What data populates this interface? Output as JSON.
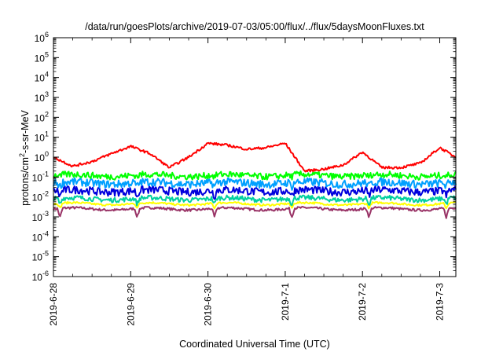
{
  "chart_data": {
    "type": "line",
    "title": "/data/run/goesPlots/archive/2019-07-03/05:00/flux/../flux/5daysMoonFluxes.txt",
    "xlabel": "Coordinated Universal Time (UTC)",
    "ylabel": {
      "pre": "protons/cm",
      "sup": "2",
      "post": "-s-sr-MeV"
    },
    "yscale": "log",
    "ylim_exp": [
      -6,
      6
    ],
    "y_ticks": [
      {
        "base": "10",
        "exp": "-6"
      },
      {
        "base": "10",
        "exp": "-5"
      },
      {
        "base": "10",
        "exp": "-4"
      },
      {
        "base": "10",
        "exp": "-3"
      },
      {
        "base": "10",
        "exp": "-2"
      },
      {
        "base": "10",
        "exp": "-1"
      },
      {
        "base": "10",
        "exp": "0"
      },
      {
        "base": "10",
        "exp": "1"
      },
      {
        "base": "10",
        "exp": "2"
      },
      {
        "base": "10",
        "exp": "3"
      },
      {
        "base": "10",
        "exp": "4"
      },
      {
        "base": "10",
        "exp": "5"
      },
      {
        "base": "10",
        "exp": "6"
      }
    ],
    "x_range": [
      "2019-06-28T00:00",
      "2019-07-03T05:00"
    ],
    "x_ticks": [
      "2019-6-28",
      "2019-6-29",
      "2019-6-30",
      "2019-7-1",
      "2019-7-2",
      "2019-7-3"
    ],
    "grid": false,
    "legend": "none",
    "series": [
      {
        "color": "#ff0000",
        "x": [
          "2019-06-28T00:00",
          "2019-06-28T06:00",
          "2019-06-28T12:00",
          "2019-06-28T18:00",
          "2019-06-29T00:00",
          "2019-06-29T06:00",
          "2019-06-29T12:00",
          "2019-06-29T18:00",
          "2019-06-30T00:00",
          "2019-06-30T06:00",
          "2019-06-30T12:00",
          "2019-06-30T18:00",
          "2019-07-01T00:00",
          "2019-07-01T06:00",
          "2019-07-01T12:00",
          "2019-07-01T18:00",
          "2019-07-02T00:00",
          "2019-07-02T06:00",
          "2019-07-02T12:00",
          "2019-07-02T18:00",
          "2019-07-03T00:00",
          "2019-07-03T05:00"
        ],
        "y": [
          1.0,
          0.35,
          0.6,
          1.5,
          3.5,
          1.5,
          0.3,
          1.0,
          5.0,
          4.0,
          2.5,
          3.0,
          5.0,
          0.2,
          0.25,
          0.4,
          1.8,
          0.3,
          0.3,
          0.5,
          3.0,
          1.0
        ]
      },
      {
        "color": "#00ff00",
        "x": [
          "2019-06-28T00:00",
          "2019-07-03T05:00"
        ],
        "y": [
          0.12,
          0.12
        ]
      },
      {
        "color": "#00a0ff",
        "x": [
          "2019-06-28T00:00",
          "2019-07-03T05:00"
        ],
        "y": [
          0.05,
          0.05
        ]
      },
      {
        "color": "#0000dd",
        "x": [
          "2019-06-28T00:00",
          "2019-07-03T05:00"
        ],
        "y": [
          0.02,
          0.02
        ]
      },
      {
        "color": "#00d0a0",
        "x": [
          "2019-06-28T00:00",
          "2019-07-03T05:00"
        ],
        "y": [
          0.008,
          0.008
        ]
      },
      {
        "color": "#ffff00",
        "x": [
          "2019-06-28T00:00",
          "2019-07-03T05:00"
        ],
        "y": [
          0.0045,
          0.0045
        ]
      },
      {
        "color": "#993366",
        "x": [
          "2019-06-28T00:00",
          "2019-07-03T05:00"
        ],
        "y": [
          0.0025,
          0.0025
        ]
      }
    ]
  }
}
